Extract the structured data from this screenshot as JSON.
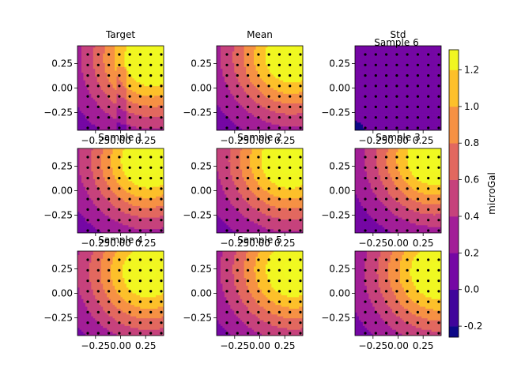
{
  "chart_data": {
    "type": "heatmap",
    "kind": "filled-contour grid with overlaid sample points",
    "colormap": "plasma",
    "contour_levels": [
      -0.4,
      -0.2,
      0.0,
      0.2,
      0.4,
      0.6,
      0.8,
      1.0,
      1.2,
      1.4
    ],
    "colorbar": {
      "label": "microGal",
      "range": [
        -0.26,
        1.31
      ],
      "ticks": [
        "-0.2",
        "0.0",
        "0.2",
        "0.4",
        "0.6",
        "0.8",
        "1.0",
        "1.2"
      ],
      "tick_values": [
        -0.2,
        0.0,
        0.2,
        0.4,
        0.6,
        0.8,
        1.0,
        1.2
      ]
    },
    "panel_xlim": [
      -0.43,
      0.43
    ],
    "panel_ylim": [
      -0.43,
      0.43
    ],
    "x_ticks": [
      "−0.25",
      "0.00",
      "0.25"
    ],
    "x_tick_values": [
      -0.25,
      0.0,
      0.25
    ],
    "y_ticks": [
      "0.25",
      "0.00",
      "−0.25"
    ],
    "y_tick_values": [
      0.25,
      0.0,
      -0.25
    ],
    "sample_points_per_axis": 8,
    "panels": [
      {
        "title": "Target",
        "field": "target"
      },
      {
        "title": "Mean",
        "field": "mean"
      },
      {
        "title": "Std",
        "extra_title": "Sample 6",
        "field": "std"
      },
      {
        "title": "Sample 1",
        "field": "sample",
        "variant": 1
      },
      {
        "title": "Sample 2",
        "field": "sample",
        "variant": 2
      },
      {
        "title": "Sample 3",
        "field": "sample",
        "variant": 3
      },
      {
        "title": "Sample 4",
        "field": "sample",
        "variant": 4
      },
      {
        "title": "Sample 5",
        "field": "sample",
        "variant": 5
      },
      {
        "title": "",
        "field": "sample",
        "variant": 6
      }
    ]
  }
}
